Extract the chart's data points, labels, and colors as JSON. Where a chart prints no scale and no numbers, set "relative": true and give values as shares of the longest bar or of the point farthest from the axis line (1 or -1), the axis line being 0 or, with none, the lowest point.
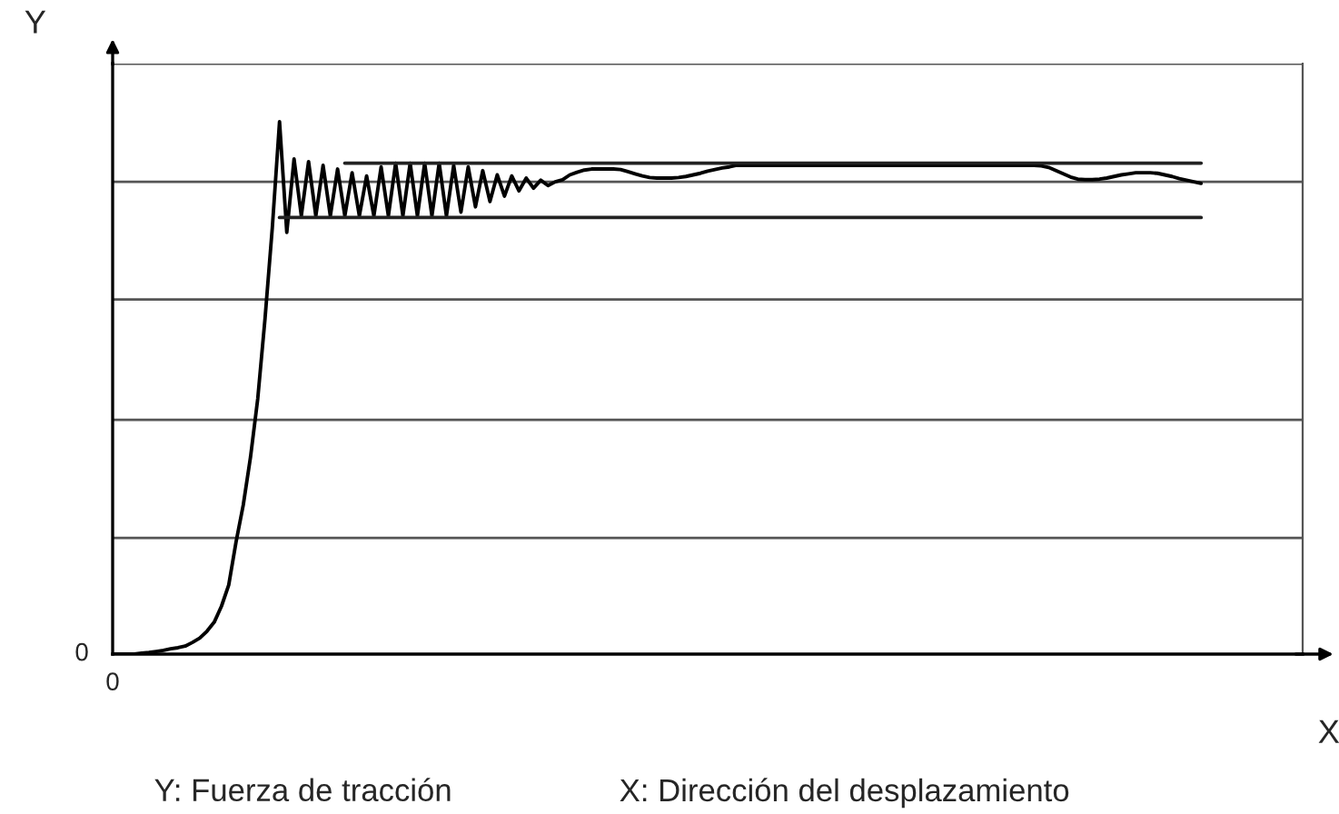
{
  "chart_data": {
    "type": "line",
    "relative": true,
    "xlabel": "X",
    "ylabel": "Y",
    "annotations": [
      "0",
      "0",
      "Y: Fuerza de tracción",
      "X: Dirección del desplazamiento"
    ],
    "categories": [
      null,
      null,
      null,
      null,
      null,
      null,
      null,
      null,
      null,
      null,
      null,
      null,
      null,
      null,
      null,
      null,
      null,
      null,
      null,
      null,
      null,
      null,
      null,
      null,
      null,
      null,
      null,
      null,
      null,
      null,
      null,
      null,
      null,
      null,
      null,
      null,
      null,
      null,
      null,
      null,
      null,
      null,
      null,
      null,
      null,
      null,
      null,
      null,
      null,
      null,
      null,
      null,
      null,
      null,
      null,
      null,
      null,
      null,
      null,
      null,
      null,
      null,
      null,
      null,
      null,
      null,
      null,
      null,
      null,
      null,
      null,
      null,
      null,
      null,
      null,
      null,
      null,
      null,
      null,
      null,
      null,
      null,
      null,
      null,
      null,
      null,
      null,
      null,
      null,
      null,
      null,
      null,
      null,
      null,
      null,
      null,
      null,
      null,
      null,
      null,
      null,
      null,
      null,
      null,
      null,
      null,
      null,
      null,
      null,
      null,
      null,
      null,
      null,
      null,
      null,
      null,
      null,
      null,
      null,
      null,
      null,
      null,
      null,
      null,
      null,
      null,
      null,
      null,
      null,
      null,
      null,
      null,
      null,
      null,
      null,
      null,
      null,
      null,
      null,
      null,
      null,
      null,
      null,
      null,
      null,
      null,
      null,
      null,
      null,
      null,
      null,
      null,
      null,
      null,
      null,
      null,
      null,
      null,
      null,
      null,
      null,
      null,
      null,
      null,
      null
    ],
    "series": [
      {
        "color": "#000000",
        "values": [
          0,
          0,
          0,
          0,
          0.002,
          0.003,
          0.005,
          0.007,
          0.01,
          0.012,
          0.015,
          0.022,
          0.03,
          0.043,
          0.06,
          0.09,
          0.13,
          0.21,
          0.28,
          0.37,
          0.48,
          0.63,
          0.8,
          1.0,
          0.792,
          0.93,
          0.823,
          0.925,
          0.823,
          0.918,
          0.823,
          0.911,
          0.823,
          0.904,
          0.823,
          0.898,
          0.823,
          0.915,
          0.823,
          0.922,
          0.823,
          0.922,
          0.823,
          0.922,
          0.823,
          0.922,
          0.823,
          0.918,
          0.83,
          0.915,
          0.84,
          0.908,
          0.85,
          0.9,
          0.86,
          0.898,
          0.87,
          0.894,
          0.875,
          0.89,
          0.88,
          0.887,
          0.891,
          0.9,
          0.905,
          0.909,
          0.911,
          0.911,
          0.911,
          0.911,
          0.91,
          0.906,
          0.902,
          0.898,
          0.895,
          0.894,
          0.894,
          0.894,
          0.895,
          0.897,
          0.9,
          0.903,
          0.907,
          0.91,
          0.913,
          0.915,
          0.918,
          0.918,
          0.918,
          0.918,
          0.918,
          0.918,
          0.918,
          0.918,
          0.918,
          0.918,
          0.918,
          0.918,
          0.918,
          0.918,
          0.918,
          0.918,
          0.918,
          0.918,
          0.918,
          0.918,
          0.918,
          0.918,
          0.918,
          0.918,
          0.918,
          0.918,
          0.918,
          0.918,
          0.918,
          0.918,
          0.918,
          0.918,
          0.918,
          0.918,
          0.918,
          0.918,
          0.918,
          0.918,
          0.918,
          0.918,
          0.918,
          0.918,
          0.917,
          0.914,
          0.908,
          0.902,
          0.896,
          0.892,
          0.891,
          0.891,
          0.892,
          0.894,
          0.897,
          0.9,
          0.902,
          0.904,
          0.904,
          0.904,
          0.903,
          0.9,
          0.897,
          0.893,
          0.89,
          0.887,
          0.884,
          null,
          null,
          null,
          null,
          null,
          null,
          null,
          null,
          null,
          null,
          null,
          null,
          null,
          null
        ]
      },
      {
        "color": "#222222",
        "values": [
          null,
          null,
          null,
          null,
          null,
          null,
          null,
          null,
          null,
          null,
          null,
          null,
          null,
          null,
          null,
          null,
          null,
          null,
          null,
          null,
          null,
          null,
          null,
          0.82,
          0.82,
          0.82,
          0.82,
          0.82,
          0.82,
          0.82,
          0.82,
          0.82,
          0.82,
          0.82,
          0.82,
          0.82,
          0.82,
          0.82,
          0.82,
          0.82,
          0.82,
          0.82,
          0.82,
          0.82,
          0.82,
          0.82,
          0.82,
          0.82,
          0.82,
          0.82,
          0.82,
          0.82,
          0.82,
          0.82,
          0.82,
          0.82,
          0.82,
          0.82,
          0.82,
          0.82,
          0.82,
          0.82,
          0.82,
          0.82,
          0.82,
          0.82,
          0.82,
          0.82,
          0.82,
          0.82,
          0.82,
          0.82,
          0.82,
          0.82,
          0.82,
          0.82,
          0.82,
          0.82,
          0.82,
          0.82,
          0.82,
          0.82,
          0.82,
          0.82,
          0.82,
          0.82,
          0.82,
          0.82,
          0.82,
          0.82,
          0.82,
          0.82,
          0.82,
          0.82,
          0.82,
          0.82,
          0.82,
          0.82,
          0.82,
          0.82,
          0.82,
          0.82,
          0.82,
          0.82,
          0.82,
          0.82,
          0.82,
          0.82,
          0.82,
          0.82,
          0.82,
          0.82,
          0.82,
          0.82,
          0.82,
          0.82,
          0.82,
          0.82,
          0.82,
          0.82,
          0.82,
          0.82,
          0.82,
          0.82,
          0.82,
          0.82,
          0.82,
          0.82,
          0.82,
          0.82,
          0.82,
          0.82,
          0.82,
          0.82,
          0.82,
          0.82,
          0.82,
          0.82,
          0.82,
          0.82,
          0.82,
          0.82,
          0.82,
          0.82,
          0.82,
          0.82,
          0.82,
          0.82,
          0.82,
          0.82,
          0.82,
          null,
          null,
          null,
          null,
          null,
          null,
          null,
          null,
          null,
          null,
          null,
          null,
          null,
          null
        ]
      },
      {
        "color": "#222222",
        "values": [
          null,
          null,
          null,
          null,
          null,
          null,
          null,
          null,
          null,
          null,
          null,
          null,
          null,
          null,
          null,
          null,
          null,
          null,
          null,
          null,
          null,
          null,
          null,
          null,
          null,
          null,
          null,
          null,
          null,
          null,
          null,
          null,
          0.922,
          0.922,
          0.922,
          0.922,
          0.922,
          0.922,
          0.922,
          0.922,
          0.922,
          0.922,
          0.922,
          0.922,
          0.922,
          0.922,
          0.922,
          0.922,
          0.922,
          0.922,
          0.922,
          0.922,
          0.922,
          0.922,
          0.922,
          0.922,
          0.922,
          0.922,
          0.922,
          0.922,
          0.922,
          0.922,
          0.922,
          0.922,
          0.922,
          0.922,
          0.922,
          0.922,
          0.922,
          0.922,
          0.922,
          0.922,
          0.922,
          0.922,
          0.922,
          0.922,
          0.922,
          0.922,
          0.922,
          0.922,
          0.922,
          0.922,
          0.922,
          0.922,
          0.922,
          0.922,
          0.922,
          0.922,
          0.922,
          0.922,
          0.922,
          0.922,
          0.922,
          0.922,
          0.922,
          0.922,
          0.922,
          0.922,
          0.922,
          0.922,
          0.922,
          0.922,
          0.922,
          0.922,
          0.922,
          0.922,
          0.922,
          0.922,
          0.922,
          0.922,
          0.922,
          0.922,
          0.922,
          0.922,
          0.922,
          0.922,
          0.922,
          0.922,
          0.922,
          0.922,
          0.922,
          0.922,
          0.922,
          0.922,
          0.922,
          0.922,
          0.922,
          0.922,
          0.922,
          0.922,
          0.922,
          0.922,
          0.922,
          0.922,
          0.922,
          0.922,
          0.922,
          0.922,
          0.922,
          0.922,
          0.922,
          0.922,
          0.922,
          0.922,
          0.922,
          0.922,
          0.922,
          0.922,
          0.922,
          0.922,
          0.922,
          null,
          null,
          null,
          null,
          null,
          null,
          null,
          null,
          null,
          null,
          null,
          null,
          null,
          null
        ]
      }
    ],
    "ref_lines": [
      {
        "axis": "y",
        "value": 0.218,
        "color": "#555555"
      },
      {
        "axis": "y",
        "value": 0.44,
        "color": "#555555"
      },
      {
        "axis": "y",
        "value": 0.666,
        "color": "#555555"
      },
      {
        "axis": "y",
        "value": 0.887,
        "color": "#555555"
      },
      {
        "axis": "y",
        "value": 1.109,
        "color": "#555555"
      }
    ]
  }
}
